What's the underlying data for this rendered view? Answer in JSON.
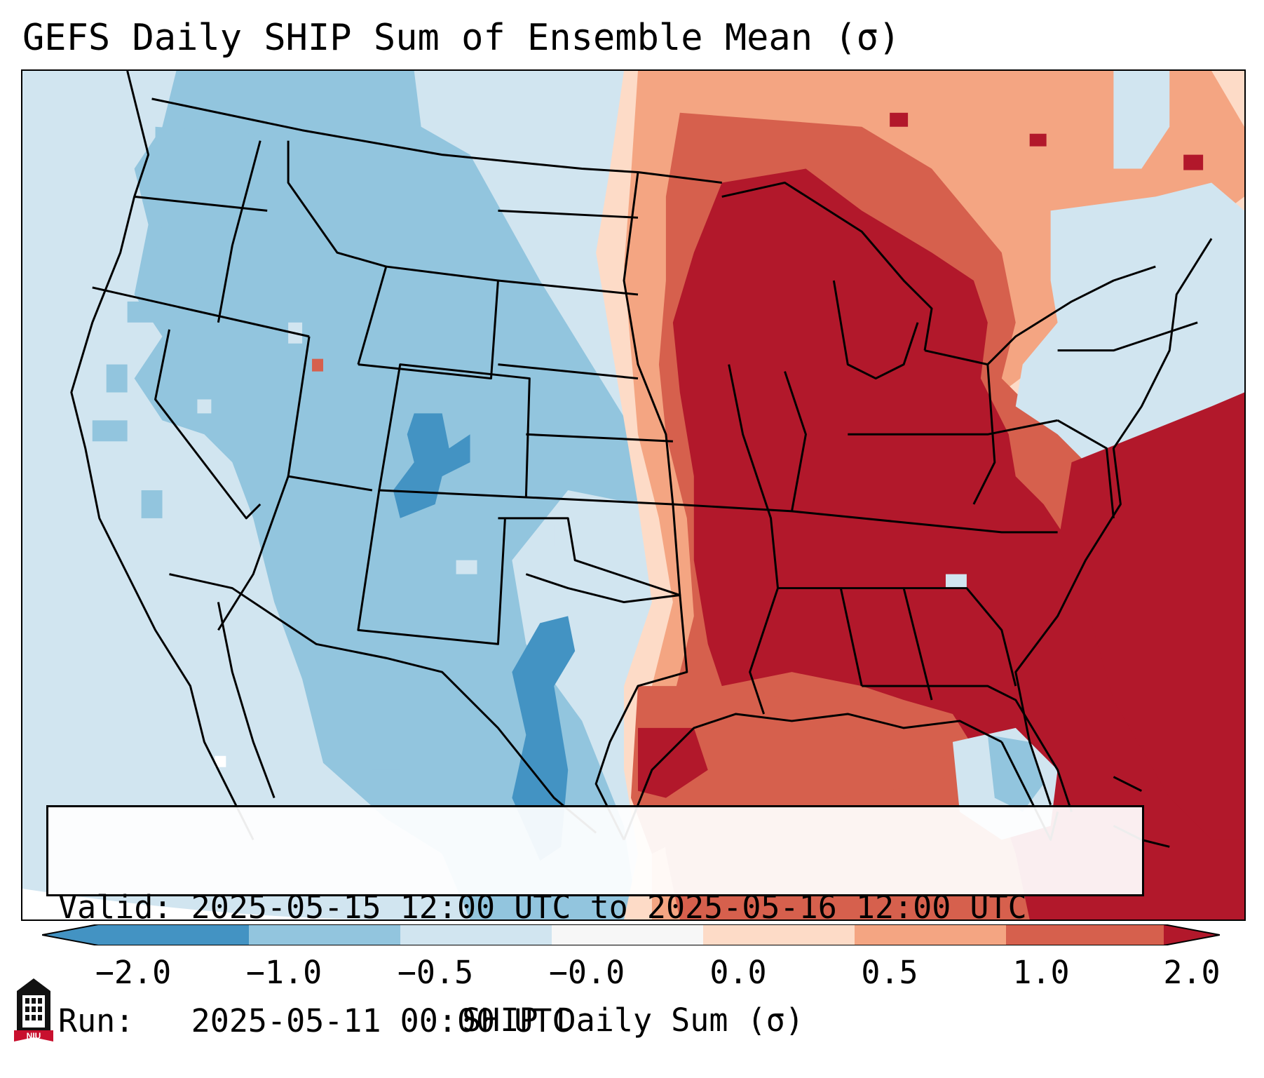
{
  "title": "GEFS Daily SHIP Sum of Ensemble Mean (σ)",
  "info": {
    "valid_line": "Valid: 2025-05-15 12:00 UTC to 2025-05-16 12:00 UTC",
    "run_line": "Run:   2025-05-11 00:00 UTC"
  },
  "colorbar": {
    "label": "SHIP Daily Sum (σ)",
    "tick_labels": [
      "−2.0",
      "−1.0",
      "−0.5",
      "−0.0",
      "0.0",
      "0.5",
      "1.0",
      "2.0"
    ],
    "colors": [
      "#4393c3",
      "#92c5de",
      "#d1e5f0",
      "#f7f7f7",
      "#fddbc7",
      "#f4a582",
      "#d6604d",
      "#b2182b"
    ]
  },
  "map_colors": {
    "dark_blue": "#4393c3",
    "mid_blue": "#92c5de",
    "light_blue": "#d1e5f0",
    "light_red": "#fddbc7",
    "mid_red": "#f4a582",
    "red": "#d6604d",
    "dark_red": "#b2182b"
  },
  "logo": {
    "icon": "university-tower-icon",
    "text": "NIU",
    "color": "#c8102e"
  }
}
